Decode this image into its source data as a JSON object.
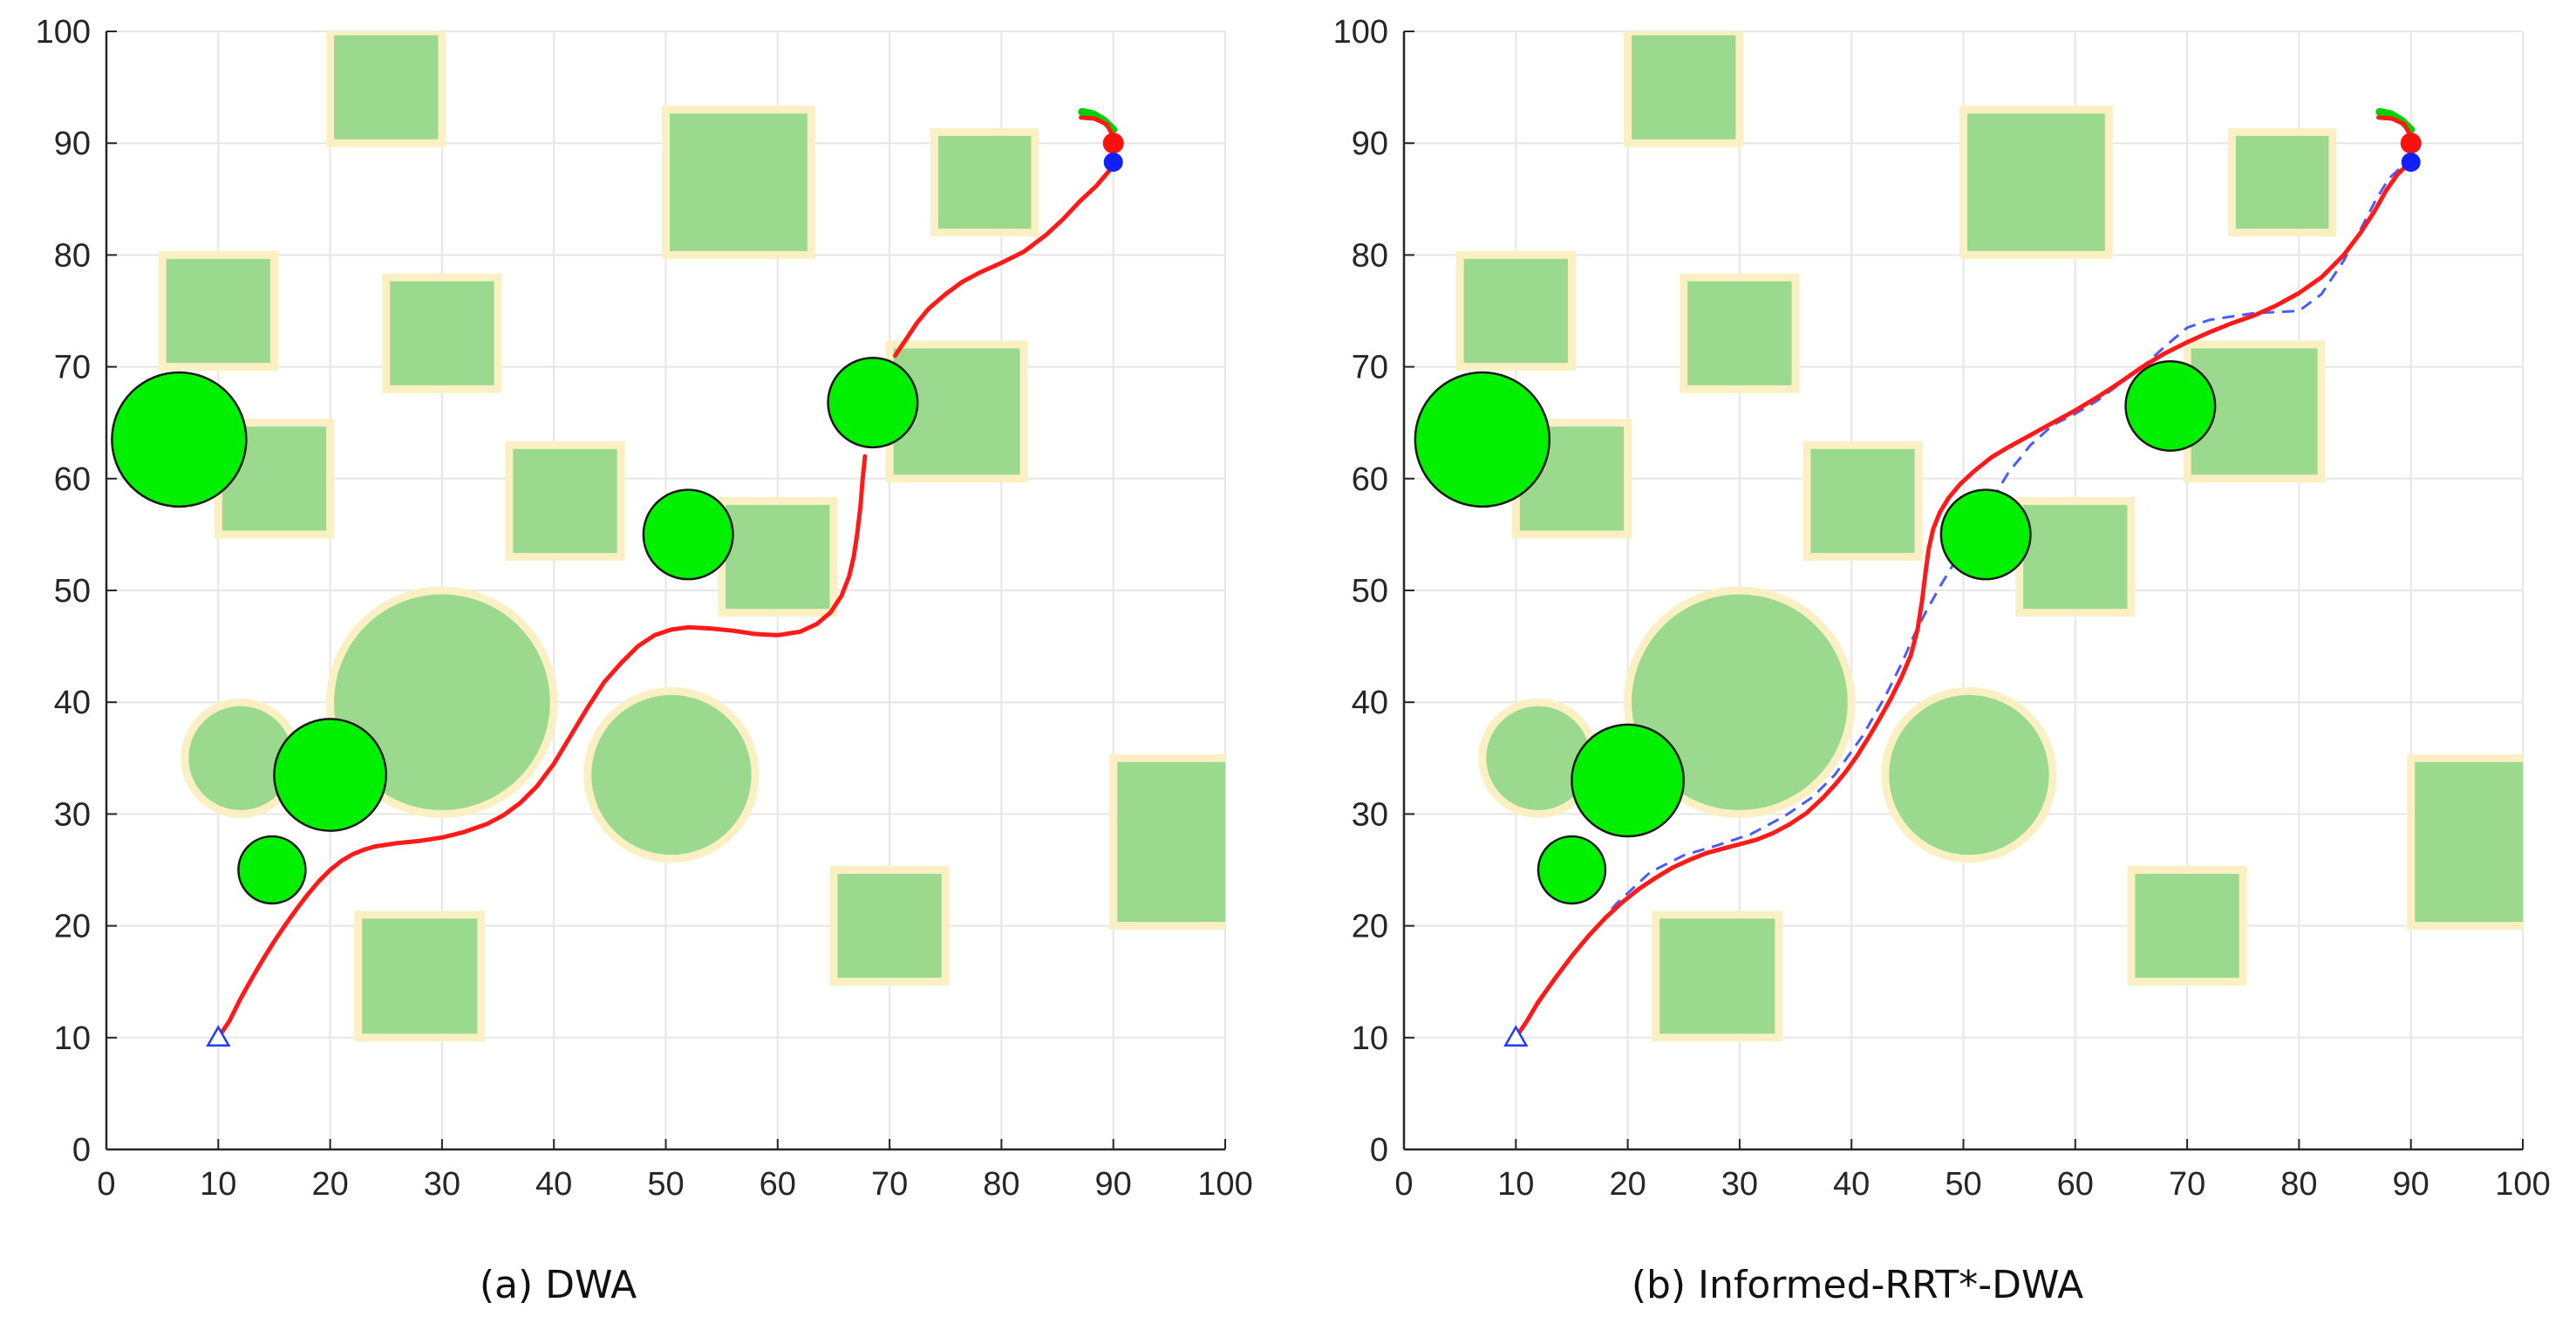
{
  "figure": {
    "captions": [
      "(a) DWA",
      "(b) Informed-RRT*-DWA"
    ]
  },
  "colors": {
    "static_fill": "#9ad98e",
    "static_border": "#fbf0c4",
    "dynamic_fill": "#00f000",
    "dynamic_stroke": "#1a1a1a",
    "path": "#ff1a1a",
    "global_path": "#4a5cff",
    "start": "#1f3cff",
    "goal_red": "#ff1010",
    "goal_blue": "#1020ff",
    "heading": "#00d000",
    "grid": "#e6e6e6",
    "axis": "#262626"
  },
  "chart_data": [
    {
      "type": "scatter",
      "title": "(a) DWA",
      "xlim": [
        0,
        100
      ],
      "ylim": [
        0,
        100
      ],
      "xticks": [
        0,
        10,
        20,
        30,
        40,
        50,
        60,
        70,
        80,
        90,
        100
      ],
      "yticks": [
        0,
        10,
        20,
        30,
        40,
        50,
        60,
        70,
        80,
        90,
        100
      ],
      "grid": true,
      "static_rects": [
        {
          "x": 25,
          "y": 95,
          "w": 10,
          "h": 10
        },
        {
          "x": 56.5,
          "y": 86.5,
          "w": 13,
          "h": 13
        },
        {
          "x": 78.5,
          "y": 86.5,
          "w": 9,
          "h": 9
        },
        {
          "x": 10,
          "y": 75,
          "w": 10,
          "h": 10
        },
        {
          "x": 30,
          "y": 73,
          "w": 10,
          "h": 10
        },
        {
          "x": 15,
          "y": 60,
          "w": 10,
          "h": 10
        },
        {
          "x": 41,
          "y": 58,
          "w": 10,
          "h": 10
        },
        {
          "x": 60,
          "y": 53,
          "w": 10,
          "h": 10
        },
        {
          "x": 76,
          "y": 66,
          "w": 12,
          "h": 12
        },
        {
          "x": 28,
          "y": 15.5,
          "w": 11,
          "h": 11
        },
        {
          "x": 70,
          "y": 20,
          "w": 10,
          "h": 10
        },
        {
          "x": 95.5,
          "y": 27.5,
          "w": 11,
          "h": 15
        }
      ],
      "static_circles": [
        {
          "x": 30,
          "y": 40,
          "r": 10
        },
        {
          "x": 50.5,
          "y": 33.5,
          "r": 7.5
        },
        {
          "x": 12,
          "y": 35,
          "r": 5
        }
      ],
      "dynamic_circles": [
        {
          "x": 6.5,
          "y": 63.5,
          "r": 6
        },
        {
          "x": 20,
          "y": 33.5,
          "r": 5
        },
        {
          "x": 14.8,
          "y": 25,
          "r": 3
        },
        {
          "x": 52,
          "y": 55,
          "r": 4
        },
        {
          "x": 68.5,
          "y": 66.8,
          "r": 4
        }
      ],
      "robot_path": [
        [
          10,
          10
        ],
        [
          11,
          11.5
        ],
        [
          12,
          13.5
        ],
        [
          13,
          15.3
        ],
        [
          14,
          17
        ],
        [
          15,
          18.6
        ],
        [
          16,
          20.1
        ],
        [
          17,
          21.5
        ],
        [
          18,
          22.8
        ],
        [
          19,
          24
        ],
        [
          20,
          25
        ],
        [
          21,
          25.8
        ],
        [
          22,
          26.4
        ],
        [
          23,
          26.8
        ],
        [
          24,
          27.1
        ],
        [
          26,
          27.4
        ],
        [
          28,
          27.6
        ],
        [
          30,
          27.9
        ],
        [
          32,
          28.4
        ],
        [
          34,
          29.1
        ],
        [
          35.5,
          29.9
        ],
        [
          37,
          31
        ],
        [
          38.5,
          32.5
        ],
        [
          40,
          34.5
        ],
        [
          41.5,
          37
        ],
        [
          43,
          39.5
        ],
        [
          44.5,
          41.8
        ],
        [
          46,
          43.5
        ],
        [
          47.5,
          45
        ],
        [
          49,
          46
        ],
        [
          50.5,
          46.5
        ],
        [
          52,
          46.7
        ],
        [
          54,
          46.6
        ],
        [
          56,
          46.4
        ],
        [
          58,
          46.1
        ],
        [
          60,
          46
        ],
        [
          62,
          46.3
        ],
        [
          63.5,
          47
        ],
        [
          64.7,
          48
        ],
        [
          65.7,
          49.5
        ],
        [
          66.4,
          51.3
        ],
        [
          66.8,
          53
        ],
        [
          67.1,
          55
        ],
        [
          67.4,
          57.5
        ],
        [
          67.6,
          60
        ],
        [
          67.8,
          62
        ]
      ],
      "robot_path_2": [
        [
          70.5,
          71
        ],
        [
          71.5,
          72.5
        ],
        [
          72.5,
          74
        ],
        [
          73.5,
          75.2
        ],
        [
          75,
          76.5
        ],
        [
          76.5,
          77.6
        ],
        [
          78,
          78.4
        ],
        [
          80,
          79.3
        ],
        [
          82,
          80.3
        ],
        [
          84,
          81.8
        ],
        [
          85.5,
          83.2
        ],
        [
          87,
          84.8
        ],
        [
          88.5,
          86.2
        ],
        [
          89.6,
          87.5
        ],
        [
          90.1,
          88.2
        ]
      ],
      "global_path": [],
      "start": {
        "x": 10,
        "y": 10
      },
      "goal": {
        "x": 90,
        "y": 90
      },
      "robot_end": {
        "x": 90,
        "y": 88.3
      },
      "heading_arc": [
        [
          87.2,
          92.8
        ],
        [
          88.2,
          92.6
        ],
        [
          89.2,
          92
        ],
        [
          90,
          91.2
        ]
      ],
      "path_hook": [
        [
          87.1,
          92.3
        ],
        [
          88.3,
          92.2
        ],
        [
          89.4,
          91.7
        ],
        [
          90,
          90.6
        ],
        [
          90.2,
          89.5
        ]
      ]
    },
    {
      "type": "scatter",
      "title": "(b) Informed-RRT*-DWA",
      "xlim": [
        0,
        100
      ],
      "ylim": [
        0,
        100
      ],
      "xticks": [
        0,
        10,
        20,
        30,
        40,
        50,
        60,
        70,
        80,
        90,
        100
      ],
      "yticks": [
        0,
        10,
        20,
        30,
        40,
        50,
        60,
        70,
        80,
        90,
        100
      ],
      "grid": true,
      "static_rects": [
        {
          "x": 25,
          "y": 95,
          "w": 10,
          "h": 10
        },
        {
          "x": 56.5,
          "y": 86.5,
          "w": 13,
          "h": 13
        },
        {
          "x": 78.5,
          "y": 86.5,
          "w": 9,
          "h": 9
        },
        {
          "x": 10,
          "y": 75,
          "w": 10,
          "h": 10
        },
        {
          "x": 30,
          "y": 73,
          "w": 10,
          "h": 10
        },
        {
          "x": 15,
          "y": 60,
          "w": 10,
          "h": 10
        },
        {
          "x": 41,
          "y": 58,
          "w": 10,
          "h": 10
        },
        {
          "x": 60,
          "y": 53,
          "w": 10,
          "h": 10
        },
        {
          "x": 76,
          "y": 66,
          "w": 12,
          "h": 12
        },
        {
          "x": 28,
          "y": 15.5,
          "w": 11,
          "h": 11
        },
        {
          "x": 70,
          "y": 20,
          "w": 10,
          "h": 10
        },
        {
          "x": 95.5,
          "y": 27.5,
          "w": 11,
          "h": 15
        }
      ],
      "static_circles": [
        {
          "x": 30,
          "y": 40,
          "r": 10
        },
        {
          "x": 50.5,
          "y": 33.5,
          "r": 7.5
        },
        {
          "x": 12,
          "y": 35,
          "r": 5
        }
      ],
      "dynamic_circles": [
        {
          "x": 7,
          "y": 63.5,
          "r": 6
        },
        {
          "x": 20,
          "y": 33,
          "r": 5
        },
        {
          "x": 15,
          "y": 25,
          "r": 3
        },
        {
          "x": 52,
          "y": 55,
          "r": 4
        },
        {
          "x": 68.5,
          "y": 66.5,
          "r": 4
        }
      ],
      "robot_path": [
        [
          10,
          10
        ],
        [
          11,
          11.5
        ],
        [
          12,
          13.2
        ],
        [
          13.5,
          15.3
        ],
        [
          15,
          17.3
        ],
        [
          16.5,
          19.1
        ],
        [
          18,
          20.7
        ],
        [
          19.5,
          22.1
        ],
        [
          21,
          23.3
        ],
        [
          22.5,
          24.3
        ],
        [
          24,
          25.2
        ],
        [
          25.5,
          25.9
        ],
        [
          27,
          26.5
        ],
        [
          28.5,
          26.9
        ],
        [
          30,
          27.3
        ],
        [
          31.5,
          27.7
        ],
        [
          33,
          28.3
        ],
        [
          34.5,
          29.1
        ],
        [
          36,
          30.1
        ],
        [
          37.5,
          31.5
        ],
        [
          38.5,
          32.6
        ],
        [
          39.5,
          33.8
        ],
        [
          40.5,
          35.2
        ],
        [
          41.5,
          36.8
        ],
        [
          42.5,
          38.5
        ],
        [
          43.5,
          40.3
        ],
        [
          44.5,
          42.3
        ],
        [
          45.3,
          44.2
        ],
        [
          45.9,
          46.5
        ],
        [
          46.3,
          49
        ],
        [
          46.6,
          51.5
        ],
        [
          46.9,
          53.7
        ],
        [
          47.3,
          55.5
        ],
        [
          47.9,
          57
        ],
        [
          48.7,
          58.3
        ],
        [
          49.7,
          59.5
        ],
        [
          51,
          60.7
        ],
        [
          52.5,
          61.9
        ],
        [
          54,
          62.8
        ],
        [
          56,
          63.9
        ],
        [
          58,
          65
        ],
        [
          60,
          66.1
        ],
        [
          62,
          67.3
        ],
        [
          64,
          68.6
        ],
        [
          66,
          70
        ],
        [
          68,
          71.2
        ],
        [
          70,
          72.2
        ],
        [
          72,
          73.1
        ],
        [
          74,
          73.9
        ],
        [
          76,
          74.6
        ],
        [
          78,
          75.5
        ],
        [
          80,
          76.6
        ],
        [
          82,
          78
        ],
        [
          84,
          80
        ],
        [
          85.5,
          82
        ],
        [
          86.8,
          84
        ],
        [
          87.8,
          85.8
        ],
        [
          88.8,
          87.2
        ],
        [
          89.6,
          88
        ]
      ],
      "global_path": [
        [
          10,
          10
        ],
        [
          13,
          14.5
        ],
        [
          16,
          18.5
        ],
        [
          19,
          22
        ],
        [
          22,
          24.8
        ],
        [
          25,
          26.3
        ],
        [
          28,
          27.2
        ],
        [
          31,
          28.2
        ],
        [
          34,
          29.8
        ],
        [
          36.5,
          31.5
        ],
        [
          38.5,
          33.5
        ],
        [
          41,
          37
        ],
        [
          43,
          40.5
        ],
        [
          44.5,
          43.5
        ],
        [
          45.6,
          46
        ],
        [
          46.6,
          48
        ],
        [
          48,
          50.5
        ],
        [
          49.5,
          53
        ],
        [
          51,
          55.5
        ],
        [
          52.5,
          58
        ],
        [
          54,
          60.5
        ],
        [
          56,
          63
        ],
        [
          58,
          64.8
        ],
        [
          60,
          65.8
        ],
        [
          62,
          67
        ],
        [
          64,
          68.5
        ],
        [
          66,
          70
        ],
        [
          68,
          71.8
        ],
        [
          70,
          73.5
        ],
        [
          72,
          74.2
        ],
        [
          74,
          74.5
        ],
        [
          76,
          74.8
        ],
        [
          78,
          74.9
        ],
        [
          80,
          75
        ],
        [
          82,
          76.5
        ],
        [
          84,
          79.5
        ],
        [
          85.5,
          82.3
        ],
        [
          86.8,
          84.8
        ],
        [
          88,
          86.8
        ],
        [
          89.3,
          88
        ]
      ],
      "robot_path_2": [],
      "start": {
        "x": 10,
        "y": 10
      },
      "goal": {
        "x": 90,
        "y": 90
      },
      "robot_end": {
        "x": 90,
        "y": 88.3
      },
      "heading_arc": [
        [
          87.2,
          92.8
        ],
        [
          88.2,
          92.6
        ],
        [
          89.2,
          92
        ],
        [
          90,
          91.2
        ]
      ],
      "path_hook": [
        [
          87.1,
          92.3
        ],
        [
          88.3,
          92.2
        ],
        [
          89.4,
          91.7
        ],
        [
          90,
          90.6
        ],
        [
          90.2,
          89.5
        ]
      ]
    }
  ]
}
